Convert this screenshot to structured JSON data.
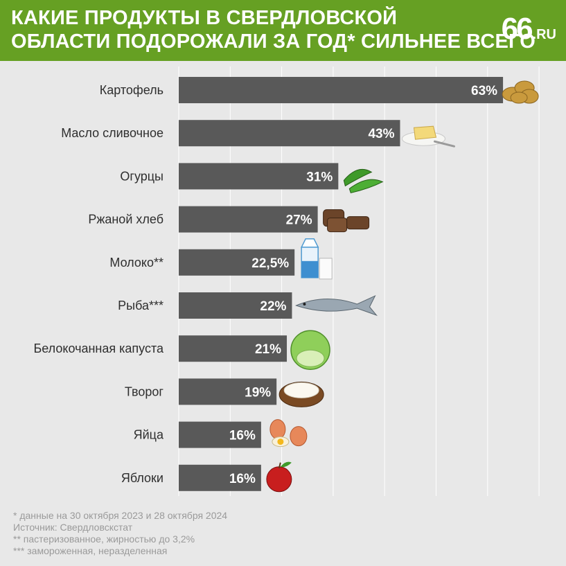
{
  "header": {
    "title_line1": "Какие продукты в Свердловской",
    "title_line2": "области подорожали за год* сильнее всего",
    "logo_number": "66",
    "logo_suffix": ".RU"
  },
  "chart_data": {
    "type": "bar",
    "orientation": "horizontal",
    "categories": [
      "Картофель",
      "Масло сливочное",
      "Огурцы",
      "Ржаной хлеб",
      "Молоко**",
      "Рыба***",
      "Белокочанная капуста",
      "Творог",
      "Яйца",
      "Яблоки"
    ],
    "values": [
      63,
      43,
      31,
      27,
      22.5,
      22,
      21,
      19,
      16,
      16
    ],
    "value_labels": [
      "63%",
      "43%",
      "31%",
      "27%",
      "22,5%",
      "22%",
      "21%",
      "19%",
      "16%",
      "16%"
    ],
    "icons": [
      "potatoes-icon",
      "butter-icon",
      "cucumbers-icon",
      "rye-bread-icon",
      "milk-icon",
      "fish-icon",
      "cabbage-icon",
      "cottage-cheese-icon",
      "eggs-icon",
      "apple-icon"
    ],
    "xlim": [
      0,
      70
    ],
    "grid": true,
    "colors": {
      "bar": "#595959",
      "grid": "#ffffff",
      "background": "#e8e8e8",
      "header": "#66a023"
    }
  },
  "footnotes": [
    "* данные на 30 октября 2023 и 28 октября 2024",
    "Источник: Свердловскстат",
    "** пастеризованное, жирностью до 3,2%",
    "*** замороженная, неразделенная"
  ]
}
